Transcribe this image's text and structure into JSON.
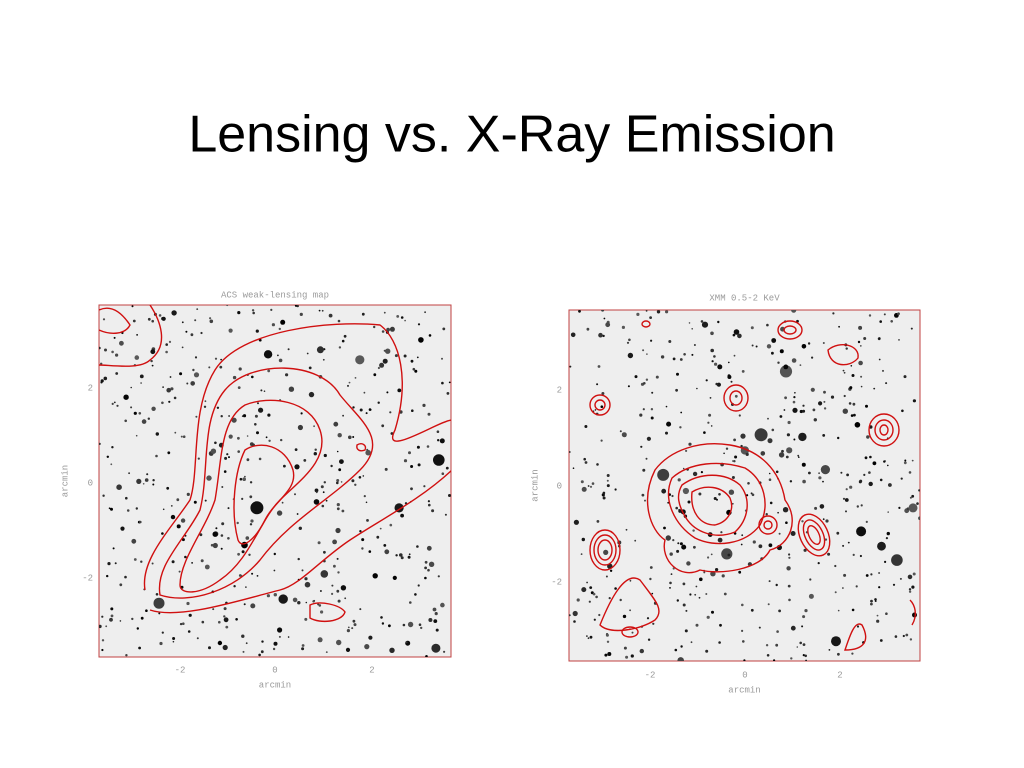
{
  "title": "Lensing vs. X-Ray Emission",
  "panels": [
    {
      "title": "ACS weak-lensing map",
      "x_label": "arcmin",
      "y_label": "arcmin",
      "x_ticks": [
        "-2",
        "0",
        "2"
      ],
      "y_ticks": [
        "2",
        "0",
        "-2"
      ]
    },
    {
      "title": "XMM 0.5-2 KeV",
      "x_label": "arcmin",
      "y_label": "arcmin",
      "x_ticks": [
        "-2",
        "0",
        "2"
      ],
      "y_ticks": [
        "2",
        "0",
        "-2"
      ]
    }
  ]
}
